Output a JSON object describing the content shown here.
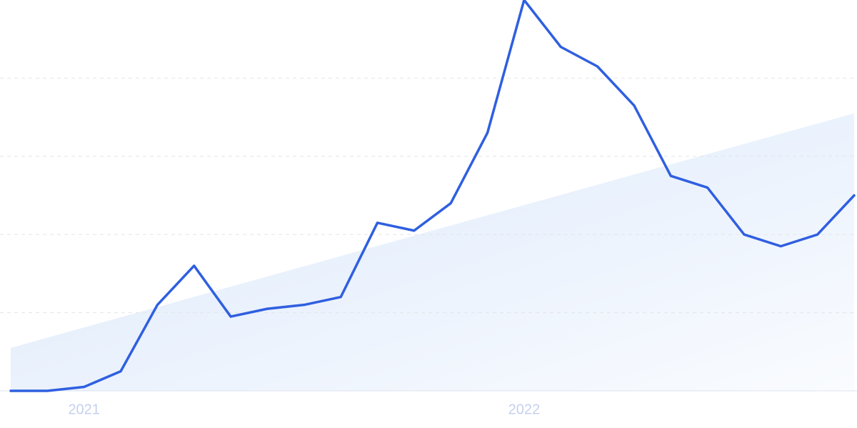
{
  "chart_data": {
    "type": "line",
    "categories": [
      null,
      null,
      "2021",
      null,
      null,
      null,
      null,
      null,
      null,
      null,
      null,
      null,
      null,
      null,
      "2022",
      null,
      null,
      null,
      null,
      null,
      null,
      null,
      null,
      null
    ],
    "series": [
      {
        "color": "#2f5fe0",
        "values": [
          0,
          0,
          1,
          5,
          22,
          32,
          19,
          21,
          22,
          24,
          43,
          41,
          48,
          66,
          100,
          88,
          83,
          73,
          55,
          52,
          40,
          37,
          40,
          50
        ]
      }
    ],
    "trend": [
      11,
      71
    ],
    "trend_color": "#dbe8fb",
    "ylim": [
      0,
      100
    ],
    "yticks": [
      0,
      20,
      40,
      60,
      80
    ],
    "grid": true
  }
}
